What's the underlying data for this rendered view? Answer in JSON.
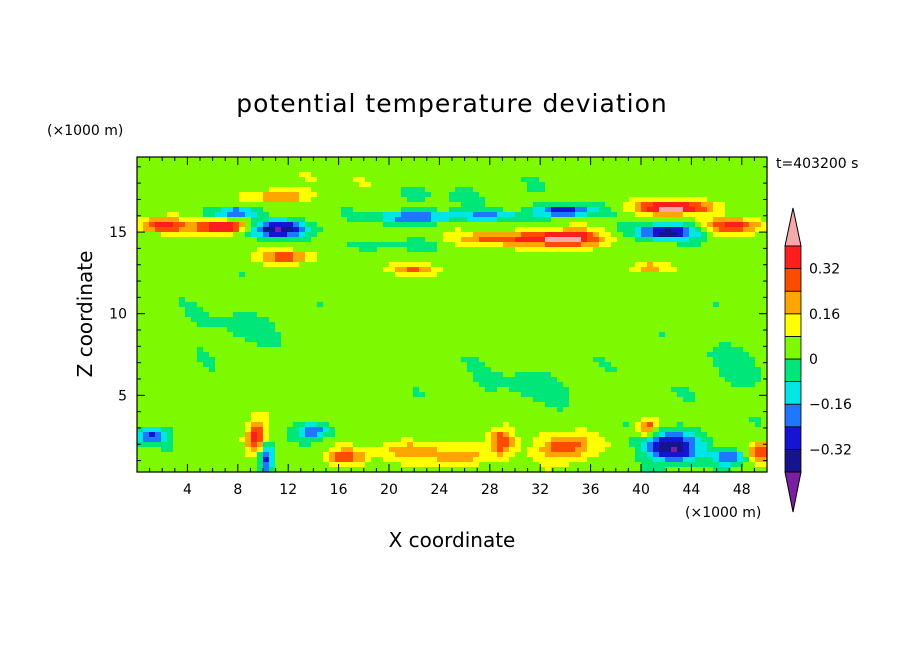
{
  "chart_data": {
    "type": "heatmap",
    "title": "potential temperature deviation",
    "xlabel": "X coordinate",
    "ylabel": "Z coordinate",
    "x_unit": "(×1000 m)",
    "y_unit": "(×1000 m)",
    "time_label": "t=403200 s",
    "xlim": [
      0,
      50
    ],
    "ylim": [
      0.3,
      19.6
    ],
    "x_ticks": [
      "4",
      "8",
      "12",
      "16",
      "20",
      "24",
      "28",
      "32",
      "36",
      "40",
      "44",
      "48"
    ],
    "y_ticks": [
      "5",
      "10",
      "15"
    ],
    "colorbar": {
      "levels": [
        -0.4,
        -0.32,
        -0.24,
        -0.16,
        -0.08,
        0,
        0.08,
        0.16,
        0.24,
        0.32,
        0.4
      ],
      "labels": [
        "0.32",
        "0.16",
        "0",
        "−0.16",
        "−0.32"
      ],
      "colors": [
        "#7a1fa0",
        "#14148c",
        "#1414d2",
        "#1e78ff",
        "#00e6e6",
        "#00e678",
        "#7dfa00",
        "#ffff00",
        "#ffa500",
        "#ff4b00",
        "#ff1e1e",
        "#f5aaaa"
      ]
    },
    "features": [
      {
        "x": 11,
        "z": 15.2,
        "sx": 2.6,
        "sz": 0.5,
        "v": -0.45
      },
      {
        "x": 7,
        "z": 15.3,
        "sx": 2.3,
        "sz": 0.4,
        "v": 0.45
      },
      {
        "x": 2,
        "z": 15.4,
        "sx": 1.8,
        "sz": 0.45,
        "v": 0.33
      },
      {
        "x": 8,
        "z": 16.2,
        "sx": 1.6,
        "sz": 0.3,
        "v": -0.3
      },
      {
        "x": 11.5,
        "z": 17.2,
        "sx": 2.0,
        "sz": 0.4,
        "v": 0.24
      },
      {
        "x": 12,
        "z": 13.5,
        "sx": 2.0,
        "sz": 0.4,
        "v": 0.26
      },
      {
        "x": 22,
        "z": 15.9,
        "sx": 3.0,
        "sz": 0.35,
        "v": -0.3
      },
      {
        "x": 20,
        "z": 14.2,
        "sx": 3.0,
        "sz": 0.3,
        "v": -0.12
      },
      {
        "x": 22,
        "z": 12.7,
        "sx": 2.0,
        "sz": 0.35,
        "v": 0.2
      },
      {
        "x": 34,
        "z": 14.6,
        "sx": 2.6,
        "sz": 0.5,
        "v": 0.45
      },
      {
        "x": 29,
        "z": 14.6,
        "sx": 3.4,
        "sz": 0.4,
        "v": 0.26
      },
      {
        "x": 34,
        "z": 16.3,
        "sx": 2.4,
        "sz": 0.35,
        "v": -0.34
      },
      {
        "x": 28,
        "z": 16.0,
        "sx": 3.0,
        "sz": 0.3,
        "v": -0.18
      },
      {
        "x": 42,
        "z": 15.0,
        "sx": 2.4,
        "sz": 0.45,
        "v": -0.4
      },
      {
        "x": 42.5,
        "z": 16.5,
        "sx": 3.0,
        "sz": 0.4,
        "v": 0.42
      },
      {
        "x": 47.5,
        "z": 15.4,
        "sx": 2.2,
        "sz": 0.45,
        "v": 0.33
      },
      {
        "x": 40.5,
        "z": 12.8,
        "sx": 1.4,
        "sz": 0.3,
        "v": 0.22
      },
      {
        "x": 9.5,
        "z": 2.4,
        "sx": 0.9,
        "sz": 0.9,
        "v": 0.36
      },
      {
        "x": 10.3,
        "z": 1.2,
        "sx": 0.6,
        "sz": 1.1,
        "v": -0.34
      },
      {
        "x": 42.5,
        "z": 1.8,
        "sx": 2.0,
        "sz": 0.95,
        "v": -0.45
      },
      {
        "x": 40.5,
        "z": 3.0,
        "sx": 0.7,
        "sz": 0.5,
        "v": 0.3
      },
      {
        "x": 34,
        "z": 1.8,
        "sx": 2.0,
        "sz": 0.8,
        "v": 0.3
      },
      {
        "x": 29,
        "z": 2.2,
        "sx": 1.0,
        "sz": 0.9,
        "v": 0.3
      },
      {
        "x": 14,
        "z": 2.8,
        "sx": 1.5,
        "sz": 0.5,
        "v": -0.26
      },
      {
        "x": 16.5,
        "z": 1.2,
        "sx": 1.6,
        "sz": 0.5,
        "v": 0.26
      },
      {
        "x": 1.2,
        "z": 2.5,
        "sx": 1.2,
        "sz": 0.5,
        "v": -0.3
      },
      {
        "x": 22,
        "z": 1.6,
        "sx": 2.5,
        "sz": 0.6,
        "v": 0.2
      },
      {
        "x": 25.5,
        "z": 1.2,
        "sx": 2.0,
        "sz": 0.5,
        "v": 0.2
      },
      {
        "x": 47,
        "z": 1.2,
        "sx": 1.2,
        "sz": 0.5,
        "v": -0.26
      },
      {
        "x": 49.5,
        "z": 1.5,
        "sx": 0.8,
        "sz": 0.6,
        "v": 0.3
      },
      {
        "x": 8,
        "z": 9.0,
        "sx": 4.0,
        "sz": 1.5,
        "v": -0.05
      },
      {
        "x": 31,
        "z": 5.5,
        "sx": 5.0,
        "sz": 1.5,
        "v": -0.05
      },
      {
        "x": 47,
        "z": 6.5,
        "sx": 3.0,
        "sz": 2.0,
        "v": -0.05
      },
      {
        "x": 25,
        "z": 17.5,
        "sx": 6.0,
        "sz": 1.0,
        "v": -0.04
      },
      {
        "x": 18,
        "z": 18.2,
        "sx": 6.0,
        "sz": 0.8,
        "v": 0.04
      }
    ]
  }
}
